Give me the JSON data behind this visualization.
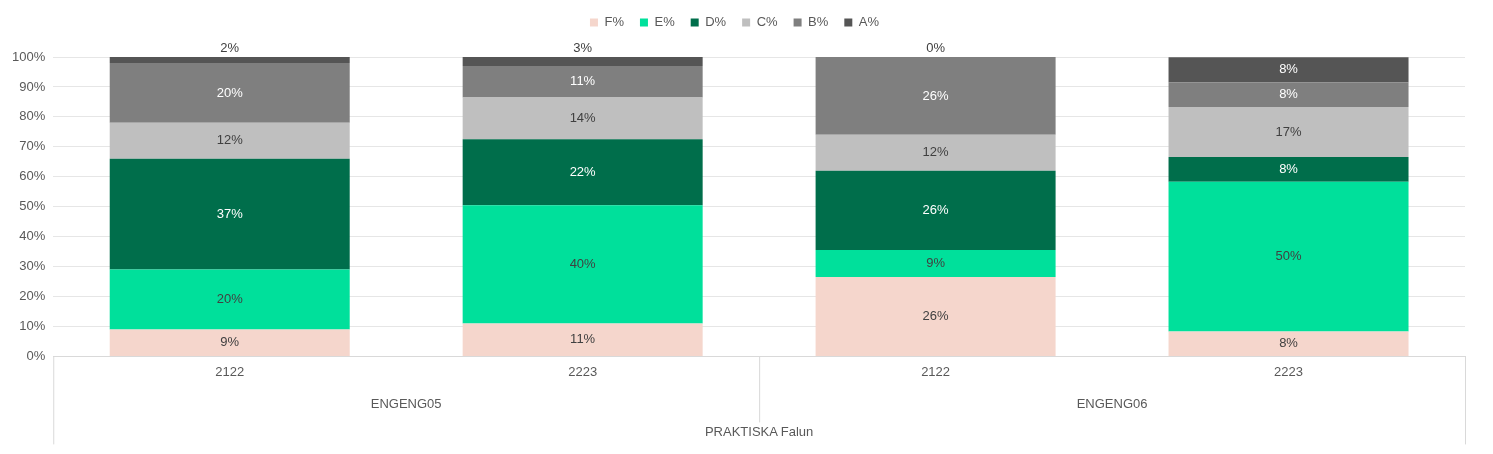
{
  "chart_data": {
    "type": "bar",
    "stacked": true,
    "categories": [
      "2122",
      "2223",
      "2122",
      "2223"
    ],
    "series": [
      {
        "name": "F%",
        "color": "#f5d6cc",
        "values": [
          9,
          11,
          26.5,
          8.3
        ],
        "value_labels": [
          "9%",
          "11%",
          "26%",
          "8%"
        ]
      },
      {
        "name": "E%",
        "color": "#00e09b",
        "values": [
          20,
          39.5,
          9,
          50
        ],
        "value_labels": [
          "20%",
          "40%",
          "9%",
          "50%"
        ]
      },
      {
        "name": "D%",
        "color": "#006e4b",
        "values": [
          37,
          22,
          26.5,
          8.3
        ],
        "value_labels": [
          "37%",
          "22%",
          "26%",
          "8%"
        ]
      },
      {
        "name": "C%",
        "color": "#bfbfbf",
        "values": [
          12,
          14,
          12,
          16.7
        ],
        "value_labels": [
          "12%",
          "14%",
          "12%",
          "17%"
        ]
      },
      {
        "name": "B%",
        "color": "#7f7f7f",
        "values": [
          20,
          10.5,
          26,
          8.3
        ],
        "value_labels": [
          "20%",
          "11%",
          "26%",
          "8%"
        ]
      },
      {
        "name": "A%",
        "color": "#555555",
        "values": [
          2,
          3,
          0,
          8.3
        ],
        "value_labels": [
          "2%",
          "3%",
          "0%",
          "8%"
        ]
      }
    ],
    "ylim": [
      0,
      100
    ],
    "yticks": [
      {
        "value": 0,
        "label": "0%"
      },
      {
        "value": 10,
        "label": "10%"
      },
      {
        "value": 20,
        "label": "20%"
      },
      {
        "value": 30,
        "label": "30%"
      },
      {
        "value": 40,
        "label": "40%"
      },
      {
        "value": 50,
        "label": "50%"
      },
      {
        "value": 60,
        "label": "60%"
      },
      {
        "value": 70,
        "label": "70%"
      },
      {
        "value": 80,
        "label": "80%"
      },
      {
        "value": 90,
        "label": "90%"
      },
      {
        "value": 100,
        "label": "100%"
      }
    ],
    "grid": "y",
    "legend": "top",
    "xlabel": "PRAKTISKA Falun",
    "annotations": [
      "ENGENG05",
      "ENGENG06"
    ]
  }
}
